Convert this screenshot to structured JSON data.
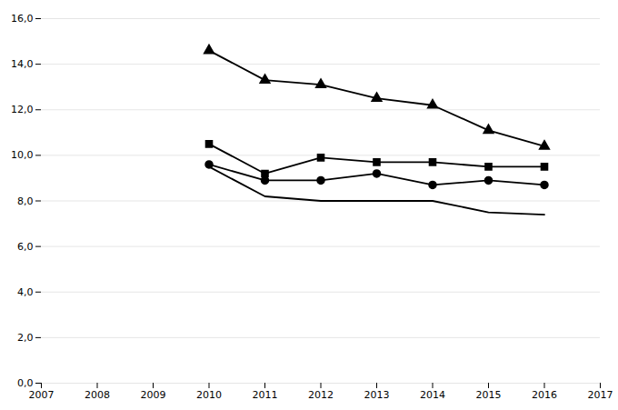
{
  "chart_data": {
    "type": "line",
    "x": [
      2010,
      2011,
      2012,
      2013,
      2014,
      2015,
      2016
    ],
    "series": [
      {
        "values": [
          14.6,
          13.3,
          13.1,
          12.5,
          12.2,
          11.1,
          10.4
        ],
        "marker": "triangle"
      },
      {
        "values": [
          10.5,
          9.2,
          9.9,
          9.7,
          9.7,
          9.5,
          9.5
        ],
        "marker": "square"
      },
      {
        "values": [
          9.6,
          8.9,
          8.9,
          9.2,
          8.7,
          8.9,
          8.7
        ],
        "marker": "circle"
      },
      {
        "values": [
          9.5,
          8.2,
          8.0,
          8.0,
          8.0,
          7.5,
          7.4
        ]
      }
    ],
    "xlim": [
      2007,
      2017
    ],
    "xticks": [
      2007,
      2008,
      2009,
      2010,
      2011,
      2012,
      2013,
      2014,
      2015,
      2016,
      2017
    ],
    "ylim": [
      0.0,
      16.0
    ],
    "yticks": [
      {
        "value": 0,
        "label": "0,0"
      },
      {
        "value": 2,
        "label": "2,0"
      },
      {
        "value": 4,
        "label": "4,0"
      },
      {
        "value": 6,
        "label": "6,0"
      },
      {
        "value": 8,
        "label": "8,0"
      },
      {
        "value": 10,
        "label": "10,0"
      },
      {
        "value": 12,
        "label": "12,0"
      },
      {
        "value": 14,
        "label": "14,0"
      },
      {
        "value": 16,
        "label": "16,0"
      }
    ],
    "grid": true
  }
}
